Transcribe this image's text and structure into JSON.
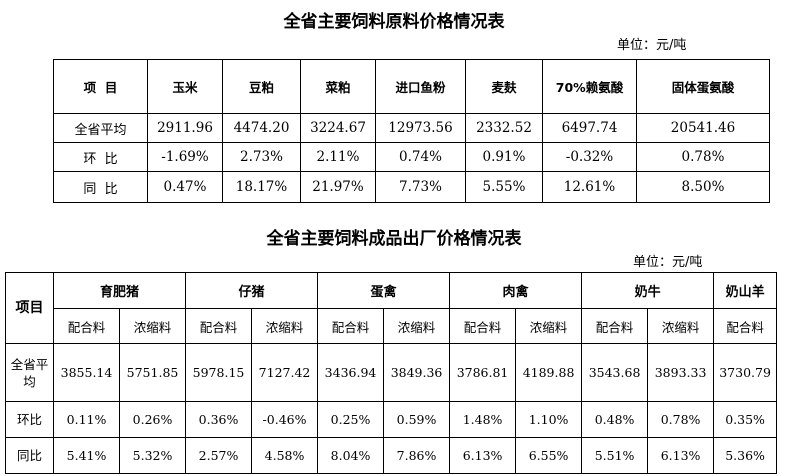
{
  "table1": {
    "title": "全省主要饲料原料价格情况表",
    "unit": "单位：元/吨",
    "corner": "项  目",
    "headers": [
      "玉米",
      "豆粕",
      "菜粕",
      "进口鱼粉",
      "麦麸",
      "70%赖氨酸",
      "固体蛋氨酸"
    ],
    "rows": [
      {
        "label": "全省平均",
        "values": [
          "2911.96",
          "4474.20",
          "3224.67",
          "12973.56",
          "2332.52",
          "6497.74",
          "20541.46"
        ]
      },
      {
        "label": "环  比",
        "values": [
          "-1.69%",
          "2.73%",
          "2.11%",
          "0.74%",
          "0.91%",
          "-0.32%",
          "0.78%"
        ]
      },
      {
        "label": "同  比",
        "values": [
          "0.47%",
          "18.17%",
          "21.97%",
          "7.73%",
          "5.55%",
          "12.61%",
          "8.50%"
        ]
      }
    ]
  },
  "table2": {
    "title": "全省主要饲料成品出厂价格情况表",
    "unit": "单位：元/吨",
    "corner": "项目",
    "groups": [
      "育肥猪",
      "仔猪",
      "蛋禽",
      "肉禽",
      "奶牛",
      "奶山羊"
    ],
    "subheaders": [
      "配合料",
      "浓缩料",
      "配合料",
      "浓缩料",
      "配合料",
      "浓缩料",
      "配合料",
      "浓缩料",
      "配合料",
      "浓缩料",
      "配合料"
    ],
    "rows": [
      {
        "label": "全省平均",
        "values": [
          "3855.14",
          "5751.85",
          "5978.15",
          "7127.42",
          "3436.94",
          "3849.36",
          "3786.81",
          "4189.88",
          "3543.68",
          "3893.33",
          "3730.79"
        ]
      },
      {
        "label": "环比",
        "values": [
          "0.11%",
          "0.26%",
          "0.36%",
          "-0.46%",
          "0.25%",
          "0.59%",
          "1.48%",
          "1.10%",
          "0.48%",
          "0.78%",
          "0.35%"
        ]
      },
      {
        "label": "同比",
        "values": [
          "5.41%",
          "5.32%",
          "2.57%",
          "4.58%",
          "8.04%",
          "7.86%",
          "6.13%",
          "6.55%",
          "5.51%",
          "6.13%",
          "5.36%"
        ]
      }
    ]
  }
}
